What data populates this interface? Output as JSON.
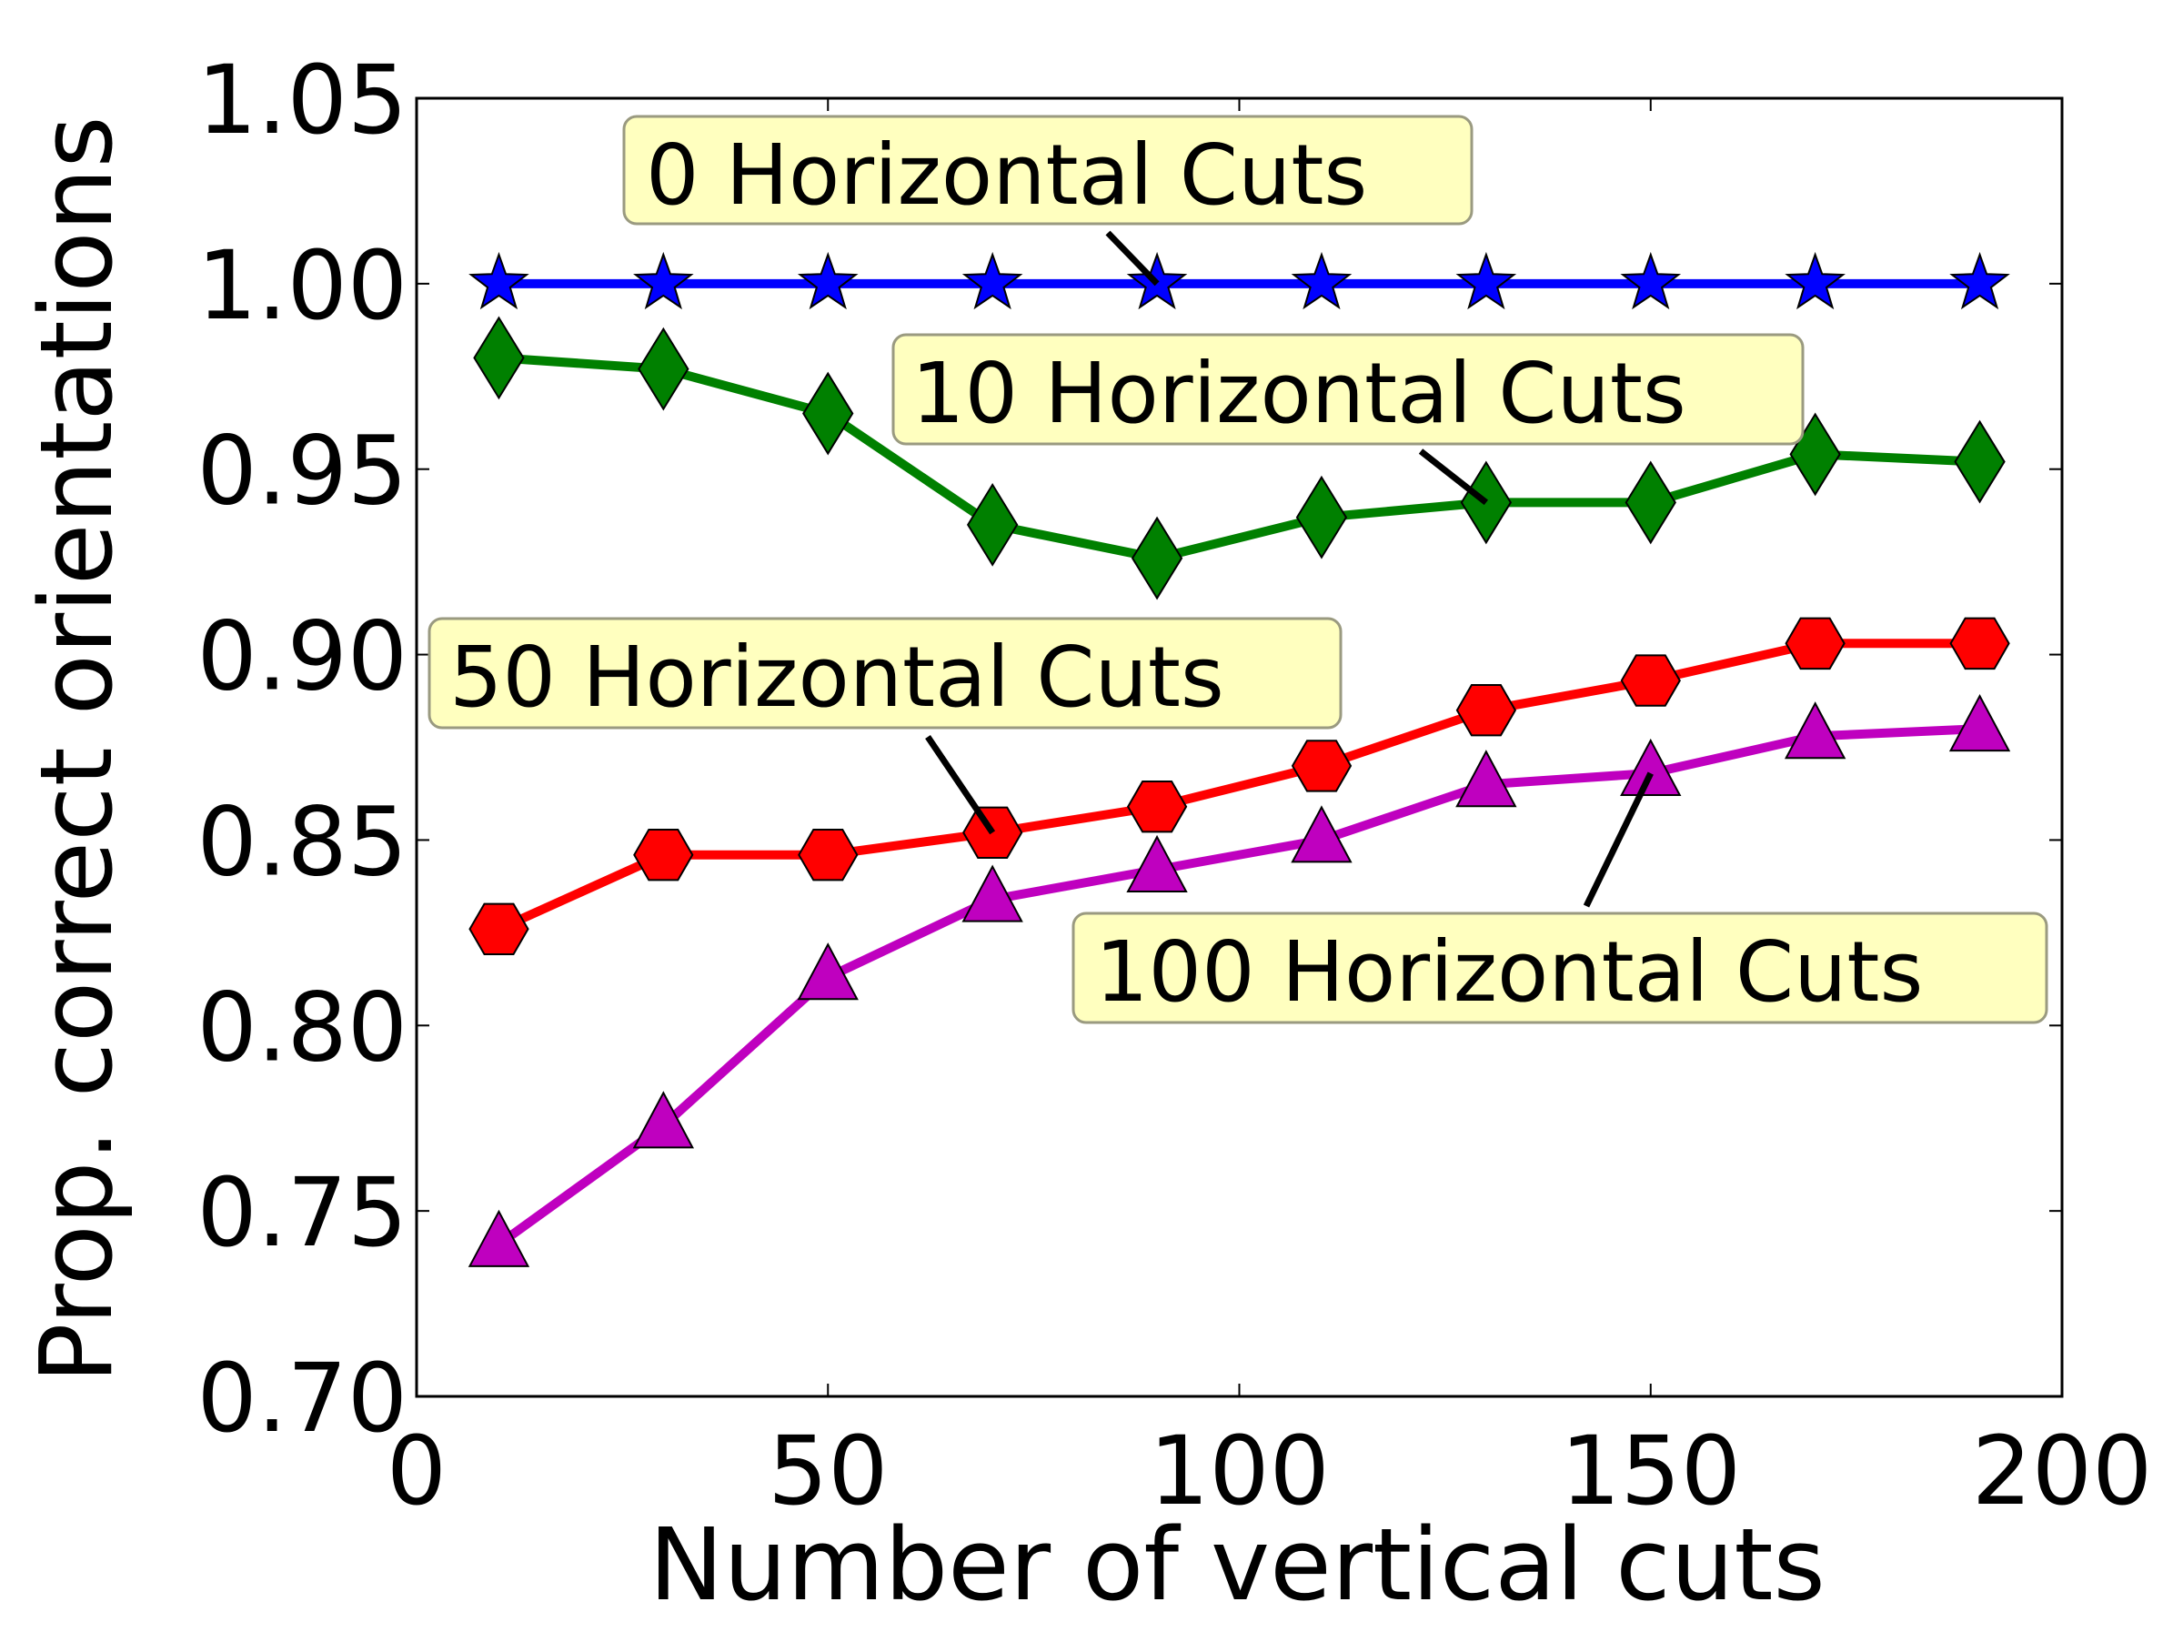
{
  "chart_data": {
    "type": "line",
    "title": "",
    "xlabel": "Number of vertical cuts",
    "ylabel": "Prop. correct orientations",
    "xlim": [
      0,
      200
    ],
    "ylim": [
      0.7,
      1.05
    ],
    "xticks": [
      0,
      50,
      100,
      150,
      200
    ],
    "xtick_labels": [
      "0",
      "50",
      "100",
      "150",
      "200"
    ],
    "yticks": [
      0.7,
      0.75,
      0.8,
      0.85,
      0.9,
      0.95,
      1.0,
      1.05
    ],
    "ytick_labels": [
      "0.70",
      "0.75",
      "0.80",
      "0.85",
      "0.90",
      "0.95",
      "1.00",
      "1.05"
    ],
    "grid": false,
    "x": [
      10,
      30,
      50,
      70,
      90,
      110,
      130,
      150,
      170,
      190
    ],
    "series": [
      {
        "color": "#0000ff",
        "marker": "star",
        "values": [
          1.0,
          1.0,
          1.0,
          1.0,
          1.0,
          1.0,
          1.0,
          1.0,
          1.0,
          1.0
        ]
      },
      {
        "color": "#008000",
        "marker": "diamond",
        "values": [
          0.98,
          0.977,
          0.965,
          0.935,
          0.926,
          0.937,
          0.941,
          0.941,
          0.954,
          0.952
        ]
      },
      {
        "color": "#ff0000",
        "marker": "hexagon",
        "values": [
          0.826,
          0.846,
          0.846,
          0.852,
          0.859,
          0.87,
          0.885,
          0.893,
          0.903,
          0.903
        ]
      },
      {
        "color": "#bf00bf",
        "marker": "triangle",
        "values": [
          0.741,
          0.773,
          0.813,
          0.834,
          0.842,
          0.85,
          0.865,
          0.868,
          0.878,
          0.88
        ]
      }
    ],
    "annotations": [
      {
        "text": "0 Horizontal Cuts",
        "series": 0,
        "point_index": 4
      },
      {
        "text": "10 Horizontal Cuts",
        "series": 1,
        "point_index": 6
      },
      {
        "text": "50 Horizontal Cuts",
        "series": 2,
        "point_index": 3
      },
      {
        "text": "100 Horizontal Cuts",
        "series": 3,
        "point_index": 7
      }
    ],
    "annotation_box_color": "#ffffbf"
  }
}
